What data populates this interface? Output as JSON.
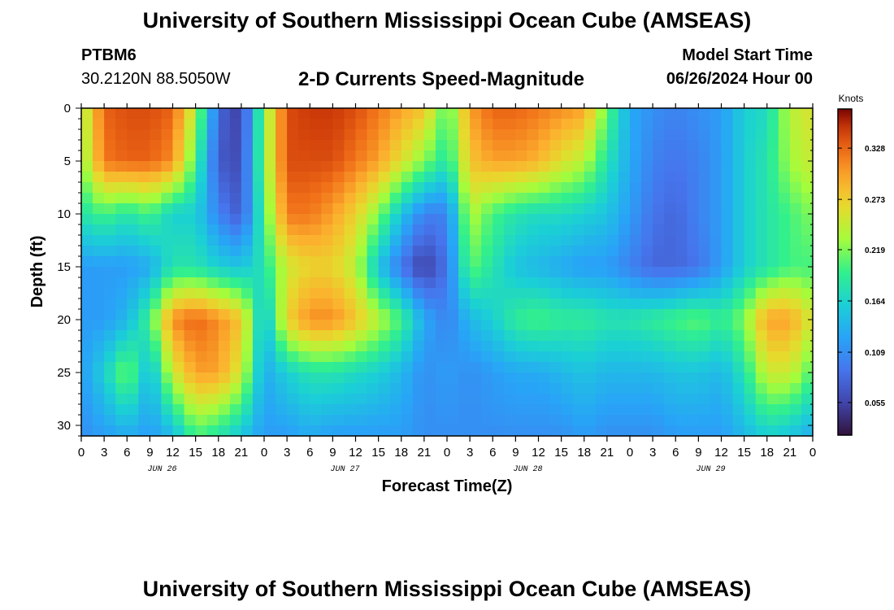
{
  "header": {
    "title": "University of Southern Mississippi Ocean Cube (AMSEAS)",
    "station_id": "PTBM6",
    "station_coords": "30.2120N  88.5050W",
    "plot_title": "2-D Currents Speed-Magnitude",
    "model_start_label": "Model Start Time",
    "model_start_value": "06/26/2024 Hour 00"
  },
  "footer": {
    "title": "University of Southern Mississippi Ocean Cube (AMSEAS)"
  },
  "chart_data": {
    "type": "heatmap",
    "xlabel": "Forecast Time(Z)",
    "ylabel": "Depth (ft)",
    "x_range_hours": [
      0,
      96
    ],
    "ylim": [
      0,
      31
    ],
    "y_inverted": true,
    "x_tick_labels": [
      "0",
      "3",
      "6",
      "9",
      "12",
      "15",
      "18",
      "21",
      "0",
      "3",
      "6",
      "9",
      "12",
      "15",
      "18",
      "21",
      "0",
      "3",
      "6",
      "9",
      "12",
      "15",
      "18",
      "21",
      "0",
      "3",
      "6",
      "9",
      "12",
      "15",
      "18",
      "21",
      "0"
    ],
    "day_labels": [
      "JUN 26",
      "JUN 27",
      "JUN 28",
      "JUN 29"
    ],
    "y_ticks": [
      0,
      5,
      10,
      15,
      20,
      25,
      30
    ],
    "y_tick_labels": [
      "0",
      "5",
      "10",
      "15",
      "20",
      "25",
      "30"
    ],
    "colorbar": {
      "title": "Knots",
      "tick_values": [
        0.055,
        0.109,
        0.164,
        0.219,
        0.273,
        0.328
      ],
      "tick_labels": [
        "0.055",
        "0.109",
        "0.164",
        "0.219",
        "0.273",
        "0.328"
      ],
      "range": [
        0.02,
        0.37
      ]
    },
    "depths": [
      0,
      5,
      10,
      15,
      20,
      25,
      31
    ],
    "times": [
      0,
      3,
      6,
      9,
      12,
      15,
      18,
      21,
      24,
      27,
      30,
      33,
      36,
      39,
      42,
      45,
      48,
      51,
      54,
      57,
      60,
      63,
      66,
      69,
      72,
      75,
      78,
      81,
      84,
      87,
      90,
      93,
      96
    ],
    "values": [
      [
        0.23,
        0.33,
        0.34,
        0.34,
        0.33,
        0.24,
        0.08,
        0.05,
        0.22,
        0.34,
        0.35,
        0.35,
        0.34,
        0.32,
        0.3,
        0.28,
        0.2,
        0.3,
        0.33,
        0.33,
        0.32,
        0.31,
        0.3,
        0.21,
        0.13,
        0.11,
        0.1,
        0.11,
        0.12,
        0.16,
        0.17,
        0.24,
        0.26
      ],
      [
        0.22,
        0.32,
        0.33,
        0.33,
        0.31,
        0.2,
        0.07,
        0.06,
        0.22,
        0.34,
        0.34,
        0.34,
        0.32,
        0.3,
        0.26,
        0.22,
        0.18,
        0.28,
        0.3,
        0.3,
        0.29,
        0.26,
        0.24,
        0.18,
        0.13,
        0.1,
        0.09,
        0.1,
        0.12,
        0.16,
        0.18,
        0.23,
        0.25
      ],
      [
        0.18,
        0.2,
        0.18,
        0.2,
        0.16,
        0.16,
        0.1,
        0.07,
        0.2,
        0.32,
        0.32,
        0.3,
        0.27,
        0.22,
        0.15,
        0.1,
        0.1,
        0.24,
        0.2,
        0.18,
        0.17,
        0.17,
        0.16,
        0.15,
        0.12,
        0.09,
        0.08,
        0.1,
        0.12,
        0.16,
        0.18,
        0.2,
        0.22
      ],
      [
        0.12,
        0.12,
        0.12,
        0.13,
        0.18,
        0.18,
        0.16,
        0.15,
        0.18,
        0.25,
        0.27,
        0.27,
        0.24,
        0.15,
        0.09,
        0.05,
        0.09,
        0.21,
        0.18,
        0.15,
        0.14,
        0.13,
        0.12,
        0.12,
        0.1,
        0.08,
        0.08,
        0.09,
        0.12,
        0.16,
        0.18,
        0.2,
        0.2
      ],
      [
        0.12,
        0.12,
        0.14,
        0.2,
        0.31,
        0.33,
        0.31,
        0.28,
        0.14,
        0.27,
        0.31,
        0.31,
        0.28,
        0.24,
        0.2,
        0.13,
        0.1,
        0.14,
        0.16,
        0.19,
        0.2,
        0.19,
        0.19,
        0.18,
        0.18,
        0.19,
        0.2,
        0.21,
        0.19,
        0.22,
        0.3,
        0.3,
        0.25
      ],
      [
        0.12,
        0.16,
        0.22,
        0.14,
        0.25,
        0.3,
        0.3,
        0.25,
        0.13,
        0.16,
        0.18,
        0.18,
        0.17,
        0.16,
        0.14,
        0.11,
        0.12,
        0.11,
        0.12,
        0.13,
        0.13,
        0.14,
        0.15,
        0.14,
        0.14,
        0.14,
        0.15,
        0.15,
        0.14,
        0.18,
        0.25,
        0.25,
        0.2
      ],
      [
        0.11,
        0.12,
        0.13,
        0.12,
        0.14,
        0.2,
        0.18,
        0.15,
        0.12,
        0.12,
        0.13,
        0.12,
        0.12,
        0.12,
        0.12,
        0.11,
        0.11,
        0.11,
        0.11,
        0.11,
        0.11,
        0.11,
        0.12,
        0.11,
        0.11,
        0.11,
        0.12,
        0.12,
        0.12,
        0.14,
        0.16,
        0.15,
        0.13
      ]
    ]
  }
}
